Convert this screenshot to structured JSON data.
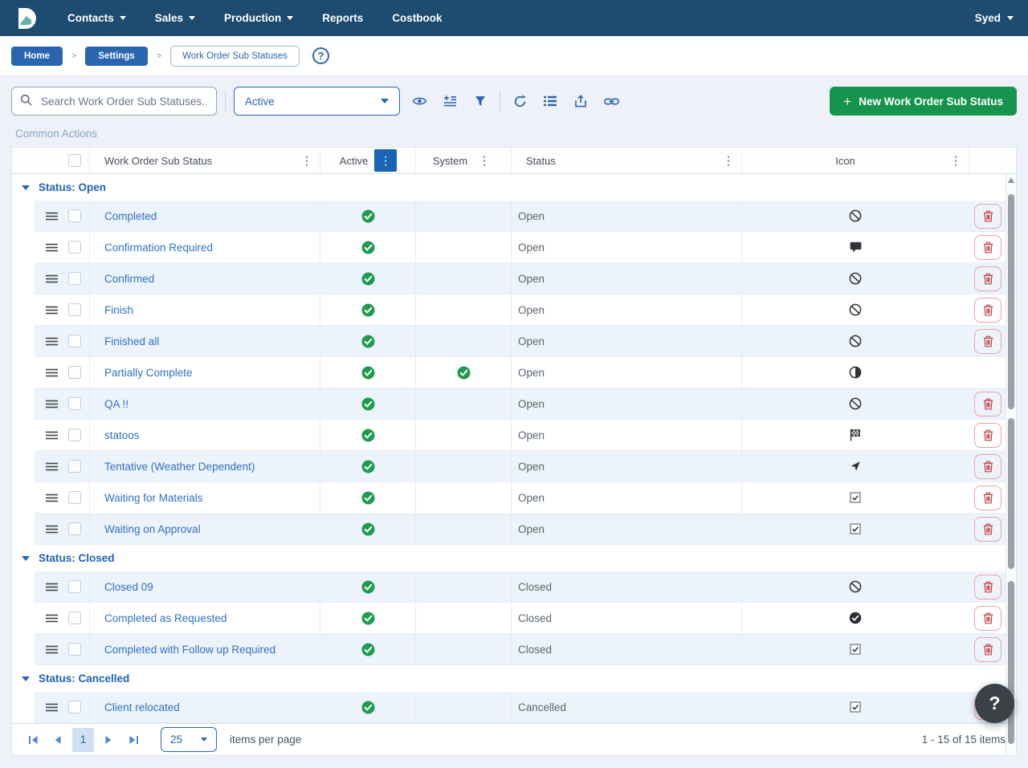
{
  "nav": {
    "items": [
      {
        "label": "Contacts",
        "dropdown": true
      },
      {
        "label": "Sales",
        "dropdown": true
      },
      {
        "label": "Production",
        "dropdown": true
      },
      {
        "label": "Reports",
        "dropdown": false
      },
      {
        "label": "Costbook",
        "dropdown": false
      }
    ],
    "user": {
      "label": "Syed"
    }
  },
  "breadcrumb": {
    "items": [
      {
        "label": "Home",
        "style": "solid"
      },
      {
        "label": "Settings",
        "style": "solid"
      },
      {
        "label": "Work Order Sub Statuses",
        "style": "outline"
      }
    ],
    "separator": ">",
    "help_icon_label": "?"
  },
  "toolbar": {
    "search": {
      "placeholder": "Search Work Order Sub Statuses...",
      "value": "",
      "icon": "search-icon"
    },
    "status_filter": {
      "value": "Active"
    },
    "icons": [
      "visibility-icon",
      "add-row-icon",
      "filter-icon",
      "refresh-icon",
      "list-view-icon",
      "export-icon",
      "copy-link-icon"
    ],
    "new_button": {
      "plus": "+",
      "label": "New Work Order Sub Status"
    }
  },
  "common_actions_label": "Common Actions",
  "table": {
    "columns": {
      "name": "Work Order Sub Status",
      "active": "Active",
      "system": "System",
      "status": "Status",
      "icon": "Icon"
    },
    "groups": [
      {
        "label": "Status: Open",
        "rows": [
          {
            "name": "Completed",
            "active": true,
            "system": false,
            "status": "Open",
            "icon": "ban",
            "deletable": true
          },
          {
            "name": "Confirmation Required",
            "active": true,
            "system": false,
            "status": "Open",
            "icon": "comment",
            "deletable": true
          },
          {
            "name": "Confirmed",
            "active": true,
            "system": false,
            "status": "Open",
            "icon": "ban",
            "deletable": true
          },
          {
            "name": "Finish",
            "active": true,
            "system": false,
            "status": "Open",
            "icon": "ban",
            "deletable": true
          },
          {
            "name": "Finished all",
            "active": true,
            "system": false,
            "status": "Open",
            "icon": "ban",
            "deletable": true
          },
          {
            "name": "Partially Complete",
            "active": true,
            "system": true,
            "status": "Open",
            "icon": "half-circle",
            "deletable": false
          },
          {
            "name": "QA !!",
            "active": true,
            "system": false,
            "status": "Open",
            "icon": "ban",
            "deletable": true
          },
          {
            "name": "statoos",
            "active": true,
            "system": false,
            "status": "Open",
            "icon": "checkered-flag",
            "deletable": true
          },
          {
            "name": "Tentative (Weather Dependent)",
            "active": true,
            "system": false,
            "status": "Open",
            "icon": "location-arrow",
            "deletable": true
          },
          {
            "name": "Waiting for Materials",
            "active": true,
            "system": false,
            "status": "Open",
            "icon": "checked-checkbox",
            "deletable": true
          },
          {
            "name": "Waiting on Approval",
            "active": true,
            "system": false,
            "status": "Open",
            "icon": "checked-checkbox",
            "deletable": true
          }
        ]
      },
      {
        "label": "Status: Closed",
        "rows": [
          {
            "name": "Closed 09",
            "active": true,
            "system": false,
            "status": "Closed",
            "icon": "ban",
            "deletable": true
          },
          {
            "name": "Completed as Requested",
            "active": true,
            "system": false,
            "status": "Closed",
            "icon": "check-circle-solid",
            "deletable": true
          },
          {
            "name": "Completed with Follow up Required",
            "active": true,
            "system": false,
            "status": "Closed",
            "icon": "checked-checkbox",
            "deletable": true
          }
        ]
      },
      {
        "label": "Status: Cancelled",
        "rows": [
          {
            "name": "Client relocated",
            "active": true,
            "system": false,
            "status": "Cancelled",
            "icon": "checked-checkbox",
            "deletable": true
          }
        ]
      }
    ]
  },
  "pagination": {
    "page": "1",
    "page_size": "25",
    "items_per_page_label": "items per page",
    "range_label": "1 - 15 of 15 items"
  },
  "help_fab_label": "?",
  "colors": {
    "nav_bg": "#1e4c70",
    "accent_blue": "#2a66b0",
    "green_button": "#16944d",
    "active_check_green": "#1e9b51",
    "delete_red": "#c2403f"
  }
}
